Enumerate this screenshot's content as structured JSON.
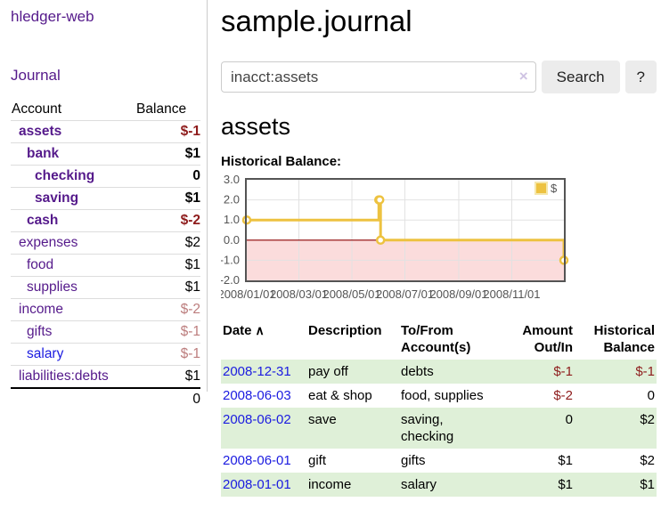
{
  "sidebar": {
    "app_title": "hledger-web",
    "journal_link": "Journal",
    "accounts_table": {
      "account_header": "Account",
      "balance_header": "Balance",
      "rows": [
        {
          "name": "assets",
          "balance": "$-1"
        },
        {
          "name": "bank",
          "balance": "$1"
        },
        {
          "name": "checking",
          "balance": "0"
        },
        {
          "name": "saving",
          "balance": "$1"
        },
        {
          "name": "cash",
          "balance": "$-2"
        },
        {
          "name": "expenses",
          "balance": "$2"
        },
        {
          "name": "food",
          "balance": "$1"
        },
        {
          "name": "supplies",
          "balance": "$1"
        },
        {
          "name": "income",
          "balance": "$-2"
        },
        {
          "name": "gifts",
          "balance": "$-1"
        },
        {
          "name": "salary",
          "balance": "$-1"
        },
        {
          "name": "liabilities:debts",
          "balance": "$1"
        }
      ],
      "total": "0"
    }
  },
  "main": {
    "title": "sample.journal",
    "search": {
      "value": "inacct:assets",
      "clear_icon": "×",
      "button_label": "Search",
      "help_label": "?"
    },
    "account_heading": "assets",
    "chart_label": "Historical Balance:",
    "register": {
      "headers": {
        "date": "Date",
        "description": "Description",
        "accounts": "To/From Account(s)",
        "amount": "Amount Out/In",
        "balance": "Historical Balance"
      },
      "sort_icon": "∧",
      "rows": [
        {
          "date": "2008-12-31",
          "description": "pay off",
          "accounts": "debts",
          "amount": "$-1",
          "balance": "$-1"
        },
        {
          "date": "2008-06-03",
          "description": "eat & shop",
          "accounts": "food, supplies",
          "amount": "$-2",
          "balance": "0"
        },
        {
          "date": "2008-06-02",
          "description": "save",
          "accounts": "saving, checking",
          "amount": "0",
          "balance": "$2"
        },
        {
          "date": "2008-06-01",
          "description": "gift",
          "accounts": "gifts",
          "amount": "$1",
          "balance": "$2"
        },
        {
          "date": "2008-01-01",
          "description": "income",
          "accounts": "salary",
          "amount": "$1",
          "balance": "$1"
        }
      ]
    }
  },
  "chart_data": {
    "type": "line",
    "title": "Historical Balance",
    "series": [
      {
        "name": "$",
        "points": [
          [
            "2008-01-01",
            1
          ],
          [
            "2008-06-01",
            2
          ],
          [
            "2008-06-02",
            2
          ],
          [
            "2008-06-03",
            0
          ],
          [
            "2008-12-31",
            -1
          ]
        ],
        "style": "step"
      }
    ],
    "xrange": [
      "2008-01-01",
      "2008-12-31"
    ],
    "ylim": [
      -2,
      3
    ],
    "yticks": [
      3.0,
      2.0,
      1.0,
      0.0,
      -1.0,
      -2.0
    ],
    "xticks": [
      "2008/01/01",
      "2008/03/01",
      "2008/05/01",
      "2008/07/01",
      "2008/09/01",
      "2008/11/01"
    ],
    "grid": true,
    "legend_position": "top-right",
    "colors": {
      "line": "#edc240",
      "marker_fill": "#ffffff",
      "negative_fill": "#fbdcdc",
      "zero_line": "#8b0000",
      "border": "#545454",
      "grid": "#e2e2e2",
      "axis_text": "#545454"
    }
  }
}
